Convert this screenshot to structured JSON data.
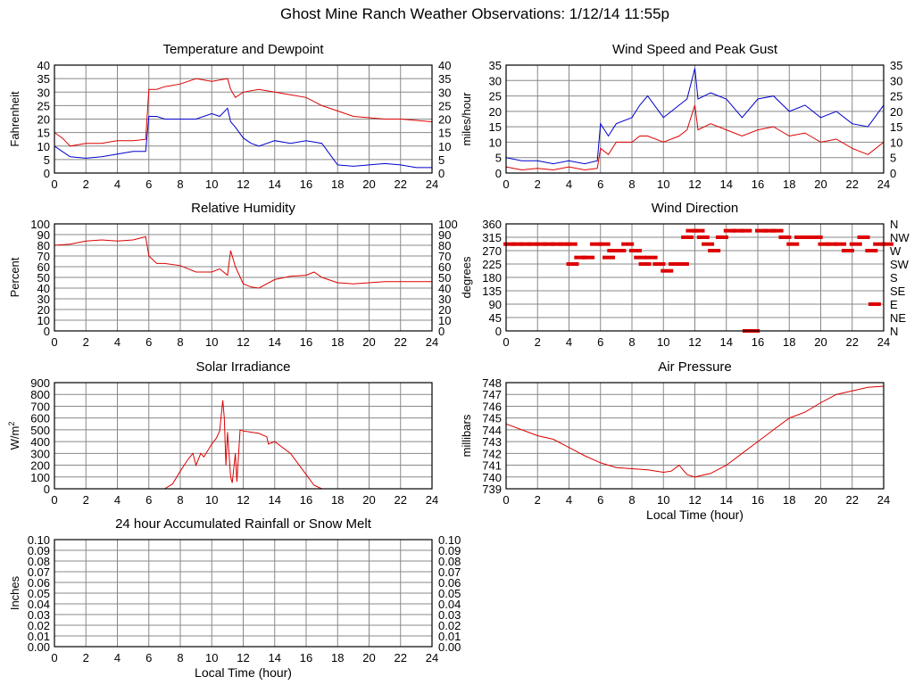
{
  "page_title": "Ghost Mine Ranch Weather Observations: 1/12/14 11:55p",
  "colors": {
    "red": "#dd0000",
    "blue": "#0000cc",
    "grid": "#888888",
    "frame": "#000000"
  },
  "chart_data": [
    {
      "id": "temperature",
      "type": "line",
      "title": "Temperature and Dewpoint",
      "ylabel": "Fahrenheit",
      "xlabel": "",
      "xlim": [
        0,
        24
      ],
      "ylim": [
        0,
        40
      ],
      "x_ticks": [
        "0",
        "2",
        "4",
        "6",
        "8",
        "10",
        "12",
        "14",
        "16",
        "18",
        "20",
        "22",
        "24"
      ],
      "y_ticks": [
        "0",
        "5",
        "10",
        "15",
        "20",
        "25",
        "30",
        "35",
        "40"
      ],
      "right_ticks": [
        "0",
        "5",
        "10",
        "15",
        "20",
        "25",
        "30",
        "35",
        "40"
      ],
      "grid": true,
      "series": [
        {
          "color": "#dd0000",
          "x": [
            0,
            0.5,
            1,
            2,
            3,
            4,
            5,
            5.8,
            6,
            6.5,
            7,
            8,
            9,
            10,
            11,
            11.2,
            11.5,
            12,
            13,
            14,
            15,
            16,
            17,
            18,
            19,
            20,
            21,
            22,
            23,
            24
          ],
          "y": [
            15,
            13,
            10,
            11,
            11,
            12,
            12,
            12.5,
            31,
            31,
            32,
            33,
            35,
            34,
            35,
            31,
            28,
            30,
            31,
            30,
            29,
            28,
            25,
            23,
            21,
            20.5,
            20,
            20,
            19.5,
            19
          ]
        },
        {
          "color": "#0000cc",
          "x": [
            0,
            0.5,
            1,
            2,
            3,
            4,
            5,
            5.8,
            6,
            6.5,
            7,
            8,
            9,
            10,
            10.5,
            11,
            11.2,
            11.5,
            12,
            12.5,
            13,
            14,
            15,
            16,
            17,
            17.5,
            18,
            19,
            20,
            21,
            22,
            23,
            24
          ],
          "y": [
            10,
            8,
            6,
            5.5,
            6,
            7,
            8,
            8,
            21,
            21,
            20,
            20,
            20,
            22,
            21,
            24,
            19,
            17,
            13,
            11,
            10,
            12,
            11,
            12,
            11,
            7,
            3,
            2.5,
            3,
            3.5,
            3,
            2,
            2
          ]
        }
      ]
    },
    {
      "id": "wind-speed",
      "type": "line",
      "title": "Wind Speed and Peak Gust",
      "ylabel": "miles/hour",
      "xlabel": "",
      "xlim": [
        0,
        24
      ],
      "ylim": [
        0,
        35
      ],
      "x_ticks": [
        "0",
        "2",
        "4",
        "6",
        "8",
        "10",
        "12",
        "14",
        "16",
        "18",
        "20",
        "22",
        "24"
      ],
      "y_ticks": [
        "0",
        "5",
        "10",
        "15",
        "20",
        "25",
        "30",
        "35"
      ],
      "right_ticks": [
        "0",
        "5",
        "10",
        "15",
        "20",
        "25",
        "30",
        "35"
      ],
      "grid": true,
      "series": [
        {
          "color": "#0000cc",
          "x": [
            0,
            1,
            2,
            3,
            4,
            5,
            5.8,
            6,
            6.5,
            7,
            8,
            8.5,
            9,
            10,
            11,
            11.5,
            12,
            12.2,
            13,
            14,
            15,
            16,
            17,
            18,
            19,
            20,
            21,
            22,
            23,
            24
          ],
          "y": [
            5,
            4,
            4,
            3,
            4,
            3,
            4,
            16,
            12,
            16,
            18,
            22,
            25,
            18,
            22,
            24,
            34,
            24,
            26,
            24,
            18,
            24,
            25,
            20,
            22,
            18,
            20,
            16,
            15,
            22
          ]
        },
        {
          "color": "#dd0000",
          "x": [
            0,
            1,
            2,
            3,
            4,
            5,
            5.8,
            6,
            6.5,
            7,
            8,
            8.5,
            9,
            10,
            11,
            11.5,
            12,
            12.2,
            13,
            14,
            15,
            16,
            17,
            18,
            19,
            20,
            21,
            22,
            23,
            24
          ],
          "y": [
            2,
            1,
            1.5,
            1,
            2,
            1,
            1.5,
            8,
            6,
            10,
            10,
            12,
            12,
            10,
            12,
            14,
            22,
            14,
            16,
            14,
            12,
            14,
            15,
            12,
            13,
            10,
            11,
            8,
            6,
            10
          ]
        }
      ]
    },
    {
      "id": "humidity",
      "type": "line",
      "title": "Relative Humidity",
      "ylabel": "Percent",
      "xlabel": "",
      "xlim": [
        0,
        24
      ],
      "ylim": [
        0,
        100
      ],
      "x_ticks": [
        "0",
        "2",
        "4",
        "6",
        "8",
        "10",
        "12",
        "14",
        "16",
        "18",
        "20",
        "22",
        "24"
      ],
      "y_ticks": [
        "0",
        "10",
        "20",
        "30",
        "40",
        "50",
        "60",
        "70",
        "80",
        "90",
        "100"
      ],
      "right_ticks": [
        "0",
        "10",
        "20",
        "30",
        "40",
        "50",
        "60",
        "70",
        "80",
        "90",
        "100"
      ],
      "grid": true,
      "series": [
        {
          "color": "#dd0000",
          "x": [
            0,
            1,
            2,
            3,
            4,
            5,
            5.8,
            6,
            6.5,
            7,
            8,
            9,
            10,
            10.5,
            11,
            11.2,
            11.5,
            12,
            12.5,
            13,
            14,
            15,
            16,
            16.5,
            17,
            18,
            19,
            20,
            21,
            22,
            23,
            24
          ],
          "y": [
            80,
            81,
            84,
            85,
            84,
            85,
            88,
            70,
            63,
            63,
            61,
            55,
            55,
            58,
            52,
            75,
            60,
            44,
            41,
            40,
            48,
            51,
            52,
            55,
            50,
            45,
            44,
            45,
            46,
            46,
            46,
            46
          ]
        }
      ]
    },
    {
      "id": "wind-direction",
      "type": "scatter",
      "title": "Wind Direction",
      "ylabel": "degrees",
      "xlabel": "",
      "xlim": [
        0,
        24
      ],
      "ylim": [
        0,
        360
      ],
      "x_ticks": [
        "0",
        "2",
        "4",
        "6",
        "8",
        "10",
        "12",
        "14",
        "16",
        "18",
        "20",
        "22",
        "24"
      ],
      "y_ticks": [
        "0",
        "45",
        "90",
        "135",
        "180",
        "225",
        "270",
        "315",
        "360"
      ],
      "right_ticks": [
        "N",
        "NE",
        "E",
        "SE",
        "S",
        "SW",
        "W",
        "NW",
        "N"
      ],
      "grid": true,
      "series": [
        {
          "color": "#dd0000",
          "x": [
            0,
            0.5,
            1,
            1.5,
            2,
            2.5,
            3,
            3.5,
            3.9,
            4,
            4.5,
            5,
            5.5,
            6,
            6.3,
            6.6,
            7,
            7.5,
            8,
            8.3,
            8.6,
            9,
            9.5,
            10,
            10.5,
            11,
            11.3,
            11.6,
            12,
            12.3,
            12.6,
            13,
            13.5,
            14,
            14.5,
            15,
            15.2,
            15.5,
            16,
            16.5,
            17,
            17.5,
            18,
            18.5,
            19,
            19.5,
            20,
            20.5,
            21,
            21.5,
            22,
            22.5,
            23,
            23.2,
            23.5,
            24
          ],
          "y": [
            292,
            292,
            292,
            292,
            292,
            292,
            292,
            292,
            292,
            225,
            247,
            247,
            292,
            292,
            247,
            270,
            270,
            292,
            270,
            247,
            225,
            247,
            225,
            202,
            225,
            225,
            315,
            337,
            337,
            315,
            292,
            270,
            315,
            337,
            337,
            337,
            0,
            0,
            337,
            337,
            337,
            315,
            292,
            315,
            315,
            315,
            292,
            292,
            292,
            270,
            292,
            315,
            270,
            90,
            292,
            292
          ]
        }
      ]
    },
    {
      "id": "solar",
      "type": "area",
      "title": "Solar Irradiance",
      "ylabel": "W/m",
      "ylabel_sup": "2",
      "xlabel": "",
      "xlim": [
        0,
        24
      ],
      "ylim": [
        0,
        900
      ],
      "x_ticks": [
        "0",
        "2",
        "4",
        "6",
        "8",
        "10",
        "12",
        "14",
        "16",
        "18",
        "20",
        "22",
        "24"
      ],
      "y_ticks": [
        "0",
        "100",
        "200",
        "300",
        "400",
        "500",
        "600",
        "700",
        "800",
        "900"
      ],
      "right_ticks": [],
      "grid": true,
      "series": [
        {
          "color": "#dd0000",
          "x": [
            0,
            7,
            7.5,
            8,
            8.5,
            8.8,
            9,
            9.3,
            9.5,
            10,
            10.3,
            10.5,
            10.7,
            10.8,
            10.9,
            11,
            11.2,
            11.3,
            11.5,
            11.6,
            11.8,
            12,
            12.5,
            13,
            13.5,
            13.6,
            14,
            15,
            16,
            16.5,
            17,
            24
          ],
          "y": [
            0,
            0,
            40,
            150,
            250,
            300,
            200,
            300,
            270,
            380,
            430,
            490,
            750,
            600,
            200,
            480,
            100,
            50,
            300,
            60,
            500,
            490,
            480,
            470,
            440,
            380,
            400,
            300,
            120,
            30,
            0,
            0
          ]
        }
      ]
    },
    {
      "id": "pressure",
      "type": "line",
      "title": "Air Pressure",
      "ylabel": "millibars",
      "xlabel": "Local Time (hour)",
      "xlim": [
        0,
        24
      ],
      "ylim": [
        739,
        748
      ],
      "x_ticks": [
        "0",
        "2",
        "4",
        "6",
        "8",
        "10",
        "12",
        "14",
        "16",
        "18",
        "20",
        "22",
        "24"
      ],
      "y_ticks": [
        "739",
        "740",
        "741",
        "742",
        "743",
        "744",
        "745",
        "746",
        "747",
        "748"
      ],
      "right_ticks": [],
      "grid": true,
      "series": [
        {
          "color": "#dd0000",
          "x": [
            0,
            1,
            2,
            3,
            4,
            5,
            6,
            7,
            8,
            9,
            10,
            10.5,
            11,
            11.5,
            12,
            13,
            14,
            15,
            16,
            17,
            18,
            19,
            20,
            21,
            22,
            23,
            24
          ],
          "y": [
            744.5,
            744,
            743.5,
            743.2,
            742.5,
            741.8,
            741.2,
            740.8,
            740.7,
            740.6,
            740.4,
            740.5,
            741,
            740.2,
            740,
            740.3,
            741,
            742,
            743,
            744,
            745,
            745.5,
            746.3,
            747,
            747.3,
            747.6,
            747.7
          ]
        }
      ]
    },
    {
      "id": "rainfall",
      "type": "line",
      "title": "24 hour Accumulated Rainfall or Snow Melt",
      "ylabel": "Inches",
      "xlabel": "Local Time (hour)",
      "xlim": [
        0,
        24
      ],
      "ylim": [
        0,
        0.1
      ],
      "x_ticks": [
        "0",
        "2",
        "4",
        "6",
        "8",
        "10",
        "12",
        "14",
        "16",
        "18",
        "20",
        "22",
        "24"
      ],
      "y_ticks": [
        "0.00",
        "0.01",
        "0.02",
        "0.03",
        "0.04",
        "0.05",
        "0.06",
        "0.07",
        "0.08",
        "0.09",
        "0.10"
      ],
      "right_ticks": [
        "0.00",
        "0.01",
        "0.02",
        "0.03",
        "0.04",
        "0.05",
        "0.06",
        "0.07",
        "0.08",
        "0.09",
        "0.10"
      ],
      "grid": true,
      "series": [
        {
          "color": "#dd0000",
          "x": [
            0,
            24
          ],
          "y": [
            0,
            0
          ]
        }
      ]
    }
  ]
}
